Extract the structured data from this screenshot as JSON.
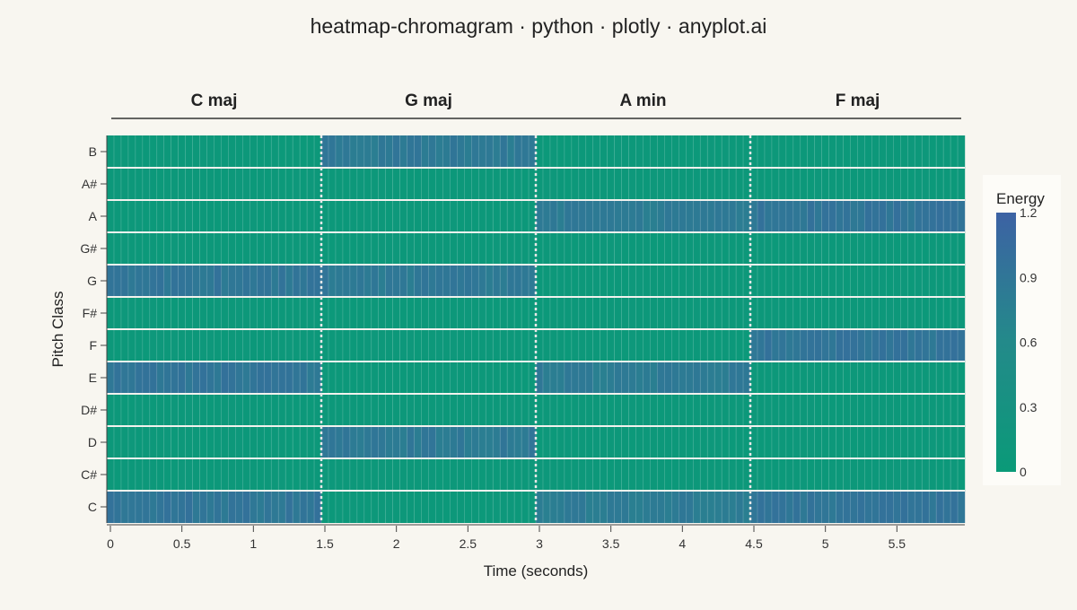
{
  "chart_data": {
    "type": "heatmap",
    "title": "heatmap-chromagram · python · plotly · anyplot.ai",
    "xlabel": "Time (seconds)",
    "ylabel": "Pitch Class",
    "xlim": [
      0,
      6
    ],
    "x_ticks": [
      0,
      0.5,
      1,
      1.5,
      2,
      2.5,
      3,
      3.5,
      4,
      4.5,
      5,
      5.5
    ],
    "x_tick_labels": [
      "0",
      "0.5",
      "1",
      "1.5",
      "2",
      "2.5",
      "3",
      "3.5",
      "4",
      "4.5",
      "5",
      "5.5"
    ],
    "pitch_classes": [
      "C",
      "C#",
      "D",
      "D#",
      "E",
      "F",
      "F#",
      "G",
      "G#",
      "A",
      "A#",
      "B"
    ],
    "frames": 120,
    "frame_duration": 0.05,
    "boundaries": [
      1.5,
      3.0,
      4.5
    ],
    "chords": [
      {
        "label": "C maj",
        "start": 0.0,
        "end": 1.5,
        "notes": [
          "C",
          "E",
          "G"
        ],
        "level": 0.9
      },
      {
        "label": "G maj",
        "start": 1.5,
        "end": 3.0,
        "notes": [
          "G",
          "B",
          "D"
        ],
        "level": 0.85
      },
      {
        "label": "A min",
        "start": 3.0,
        "end": 4.5,
        "notes": [
          "A",
          "C",
          "E"
        ],
        "level": 0.82
      },
      {
        "label": "F maj",
        "start": 4.5,
        "end": 6.0,
        "notes": [
          "F",
          "A",
          "C"
        ],
        "level": 0.92
      }
    ],
    "background_level": 0.05,
    "colorbar": {
      "title": "Energy",
      "range": [
        0,
        1.2
      ],
      "ticks": [
        0,
        0.3,
        0.6,
        0.9,
        1.2
      ],
      "tick_labels": [
        "0",
        "0.3",
        "0.6",
        "0.9",
        "1.2"
      ],
      "color_low": "#0a9a78",
      "color_mid": "#238a8a",
      "color_high": "#3d62a4"
    }
  }
}
